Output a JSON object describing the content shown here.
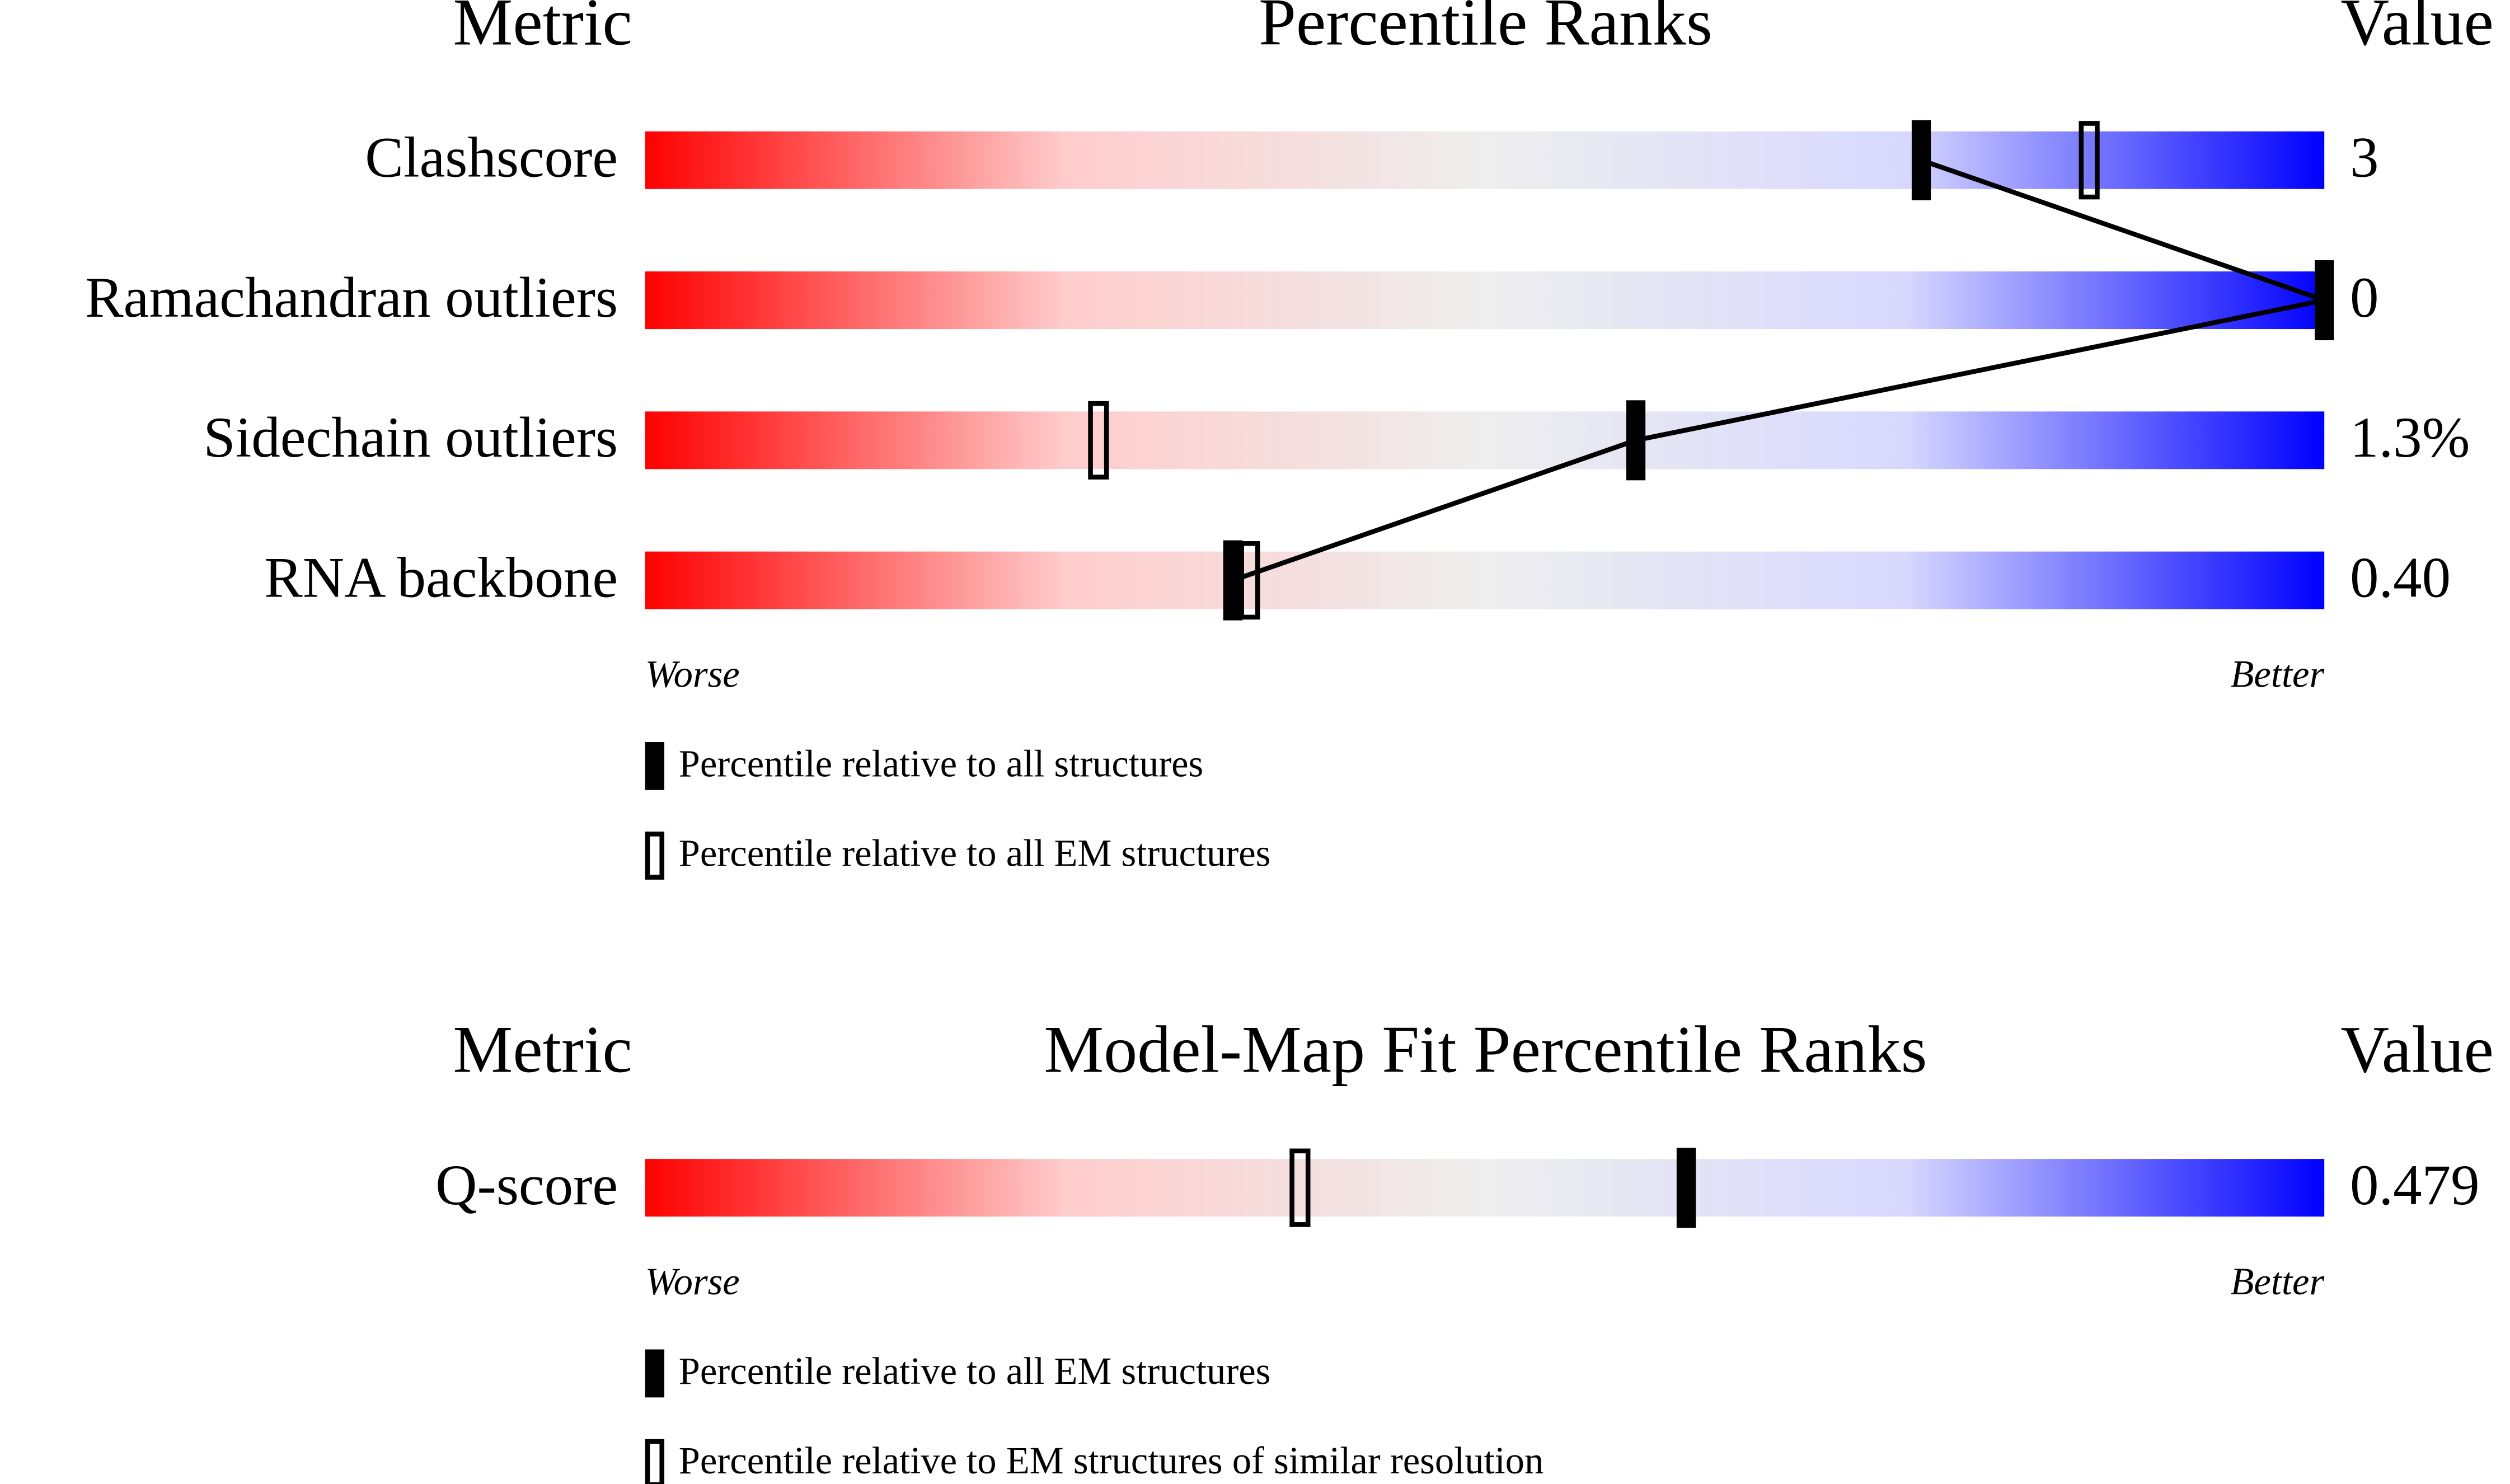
{
  "chart_data": [
    {
      "type": "percentile-slider",
      "headers": {
        "metric": "Metric",
        "title": "Percentile Ranks",
        "value": "Value"
      },
      "categories": [
        "Clashscore",
        "Ramachandran outliers",
        "Sidechain outliers",
        "RNA backbone"
      ],
      "metric_values": [
        "3",
        "0",
        "1.3%",
        "0.40"
      ],
      "xlim": [
        0,
        100
      ],
      "series": [
        {
          "name": "Percentile relative to all structures",
          "style": "filled",
          "color": "#000000",
          "values": [
            76,
            100,
            59,
            35
          ]
        },
        {
          "name": "Percentile relative to all EM structures",
          "style": "open",
          "color": "#000000",
          "values": [
            86,
            null,
            27,
            36
          ]
        }
      ],
      "connect": true,
      "worse": "Worse",
      "better": "Better",
      "gradient": [
        "#ff0000",
        "#ffcccc",
        "#eeeeee",
        "#d8d8ff",
        "#0000ff"
      ]
    },
    {
      "type": "percentile-slider",
      "headers": {
        "metric": "Metric",
        "title": "Model-Map Fit Percentile Ranks",
        "value": "Value"
      },
      "categories": [
        "Q-score"
      ],
      "metric_values": [
        "0.479"
      ],
      "xlim": [
        0,
        100
      ],
      "series": [
        {
          "name": "Percentile relative to all EM structures",
          "style": "filled",
          "color": "#000000",
          "values": [
            62
          ]
        },
        {
          "name": "Percentile relative to EM structures of similar resolution",
          "style": "open",
          "color": "#000000",
          "values": [
            39
          ]
        }
      ],
      "connect": false,
      "worse": "Worse",
      "better": "Better",
      "gradient": [
        "#ff0000",
        "#ffcccc",
        "#eeeeee",
        "#d8d8ff",
        "#0000ff"
      ]
    }
  ]
}
